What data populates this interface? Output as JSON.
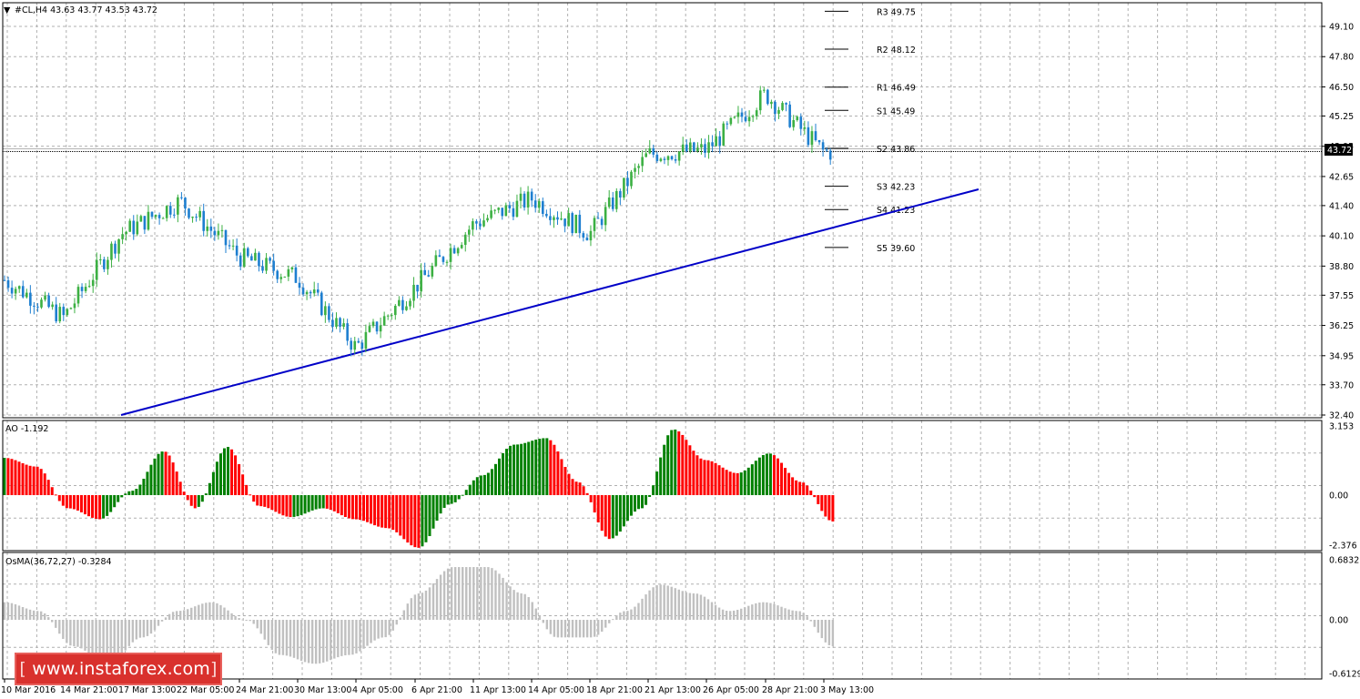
{
  "header": {
    "symbol_line": "#CL,H4  43.63 43.77 43.53 43.72",
    "menu_icon": "dropdown-triangle-icon"
  },
  "price_panel": {
    "current_price_label": "43.72",
    "axis_ticks": [
      "49.10",
      "47.80",
      "46.50",
      "45.25",
      "43.95",
      "42.65",
      "41.40",
      "40.10",
      "38.80",
      "37.55",
      "36.25",
      "34.95",
      "33.70",
      "32.40"
    ],
    "pivot_levels": [
      {
        "label": "R3 49.75",
        "value": 49.75
      },
      {
        "label": "R2 48.12",
        "value": 48.12
      },
      {
        "label": "R1 46.49",
        "value": 46.49
      },
      {
        "label": "S1 45.49",
        "value": 45.49
      },
      {
        "label": "S2 43.86",
        "value": 43.86
      },
      {
        "label": "S3 42.23",
        "value": 42.23
      },
      {
        "label": "S4 41.23",
        "value": 41.23
      },
      {
        "label": "S5 39.60",
        "value": 39.6
      }
    ],
    "trendline_color": "#0000c8",
    "bull_color": "#3cb043",
    "bear_color": "#1e7fd0"
  },
  "ao_panel": {
    "label": "AO -1.192",
    "axis_ticks": [
      "3.153",
      "0.00",
      "-2.376"
    ],
    "up_color": "#008000",
    "down_color": "#ff0000"
  },
  "osma_panel": {
    "label": "OsMA(36,72,27) -0.3284",
    "axis_ticks": [
      "0.6832",
      "0.00",
      "-0.6129"
    ],
    "bar_color": "#c0c0c0"
  },
  "time_axis": {
    "labels": [
      "10 Mar 2016",
      "14 Mar 21:00",
      "17 Mar 13:00",
      "22 Mar 05:00",
      "24 Mar 21:00",
      "30 Mar 13:00",
      "4 Apr 05:00",
      "6 Apr 21:00",
      "11 Apr 13:00",
      "14 Apr 05:00",
      "18 Apr 21:00",
      "21 Apr 13:00",
      "26 Apr 05:00",
      "28 Apr 21:00",
      "3 May 13:00"
    ]
  },
  "watermark": {
    "text": "www.instaforex.com",
    "bracket_left": "[",
    "bracket_right": "]"
  },
  "chart_data": [
    {
      "type": "candlestick",
      "title": "#CL,H4",
      "ylim": [
        32.4,
        50.4
      ],
      "approx_close_path": [
        {
          "x": "10 Mar 2016",
          "y": 38.2
        },
        {
          "x": "14 Mar 21:00",
          "y": 36.6
        },
        {
          "x": "17 Mar 13:00",
          "y": 40.2
        },
        {
          "x": "22 Mar 05:00",
          "y": 41.6
        },
        {
          "x": "24 Mar 21:00",
          "y": 39.2
        },
        {
          "x": "30 Mar 13:00",
          "y": 38.3
        },
        {
          "x": "4 Apr 05:00",
          "y": 35.3
        },
        {
          "x": "6 Apr 21:00",
          "y": 37.9
        },
        {
          "x": "11 Apr 13:00",
          "y": 40.6
        },
        {
          "x": "14 Apr 05:00",
          "y": 41.7
        },
        {
          "x": "18 Apr 21:00",
          "y": 40.2
        },
        {
          "x": "21 Apr 13:00",
          "y": 43.6
        },
        {
          "x": "26 Apr 05:00",
          "y": 43.8
        },
        {
          "x": "28 Apr 21:00",
          "y": 46.2
        },
        {
          "x": "3 May 13:00",
          "y": 43.7
        }
      ],
      "trendline": {
        "from": {
          "x": "14 Mar 21:00",
          "y": 32.4
        },
        "to": {
          "x": "after 3 May 13:00",
          "y": 42.1
        }
      }
    },
    {
      "type": "bar",
      "title": "AO",
      "ylim": [
        -2.376,
        3.153
      ],
      "approx_values": [
        1.7,
        1.3,
        -0.6,
        -1.1,
        0.2,
        2.0,
        -0.6,
        2.2,
        -0.5,
        -1.0,
        -0.6,
        -1.1,
        -1.5,
        -2.4,
        -0.4,
        0.9,
        2.3,
        2.6,
        0.6,
        -2.0,
        -0.6,
        3.0,
        1.6,
        1.0,
        1.9,
        0.6,
        -1.2
      ]
    },
    {
      "type": "bar",
      "title": "OsMA(36,72,27)",
      "ylim": [
        -0.6129,
        0.6832
      ],
      "approx_values": [
        0.2,
        0.1,
        -0.3,
        -0.5,
        -0.2,
        0.1,
        0.2,
        0.0,
        -0.4,
        -0.5,
        -0.4,
        -0.2,
        0.3,
        0.6,
        0.6,
        0.3,
        -0.2,
        -0.2,
        0.1,
        0.4,
        0.3,
        0.1,
        0.2,
        0.1,
        -0.3
      ]
    }
  ]
}
